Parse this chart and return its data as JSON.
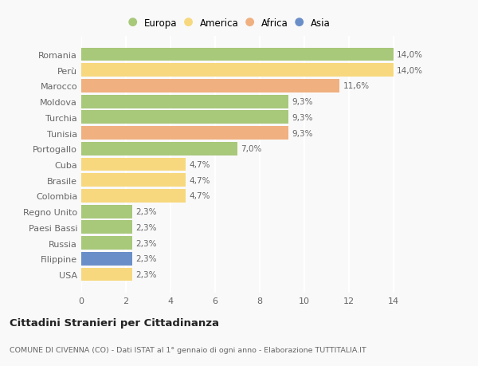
{
  "countries": [
    "Romania",
    "Perù",
    "Marocco",
    "Moldova",
    "Turchia",
    "Tunisia",
    "Portogallo",
    "Cuba",
    "Brasile",
    "Colombia",
    "Regno Unito",
    "Paesi Bassi",
    "Russia",
    "Filippine",
    "USA"
  ],
  "values": [
    14.0,
    14.0,
    11.6,
    9.3,
    9.3,
    9.3,
    7.0,
    4.7,
    4.7,
    4.7,
    2.3,
    2.3,
    2.3,
    2.3,
    2.3
  ],
  "labels": [
    "14,0%",
    "14,0%",
    "11,6%",
    "9,3%",
    "9,3%",
    "9,3%",
    "7,0%",
    "4,7%",
    "4,7%",
    "4,7%",
    "2,3%",
    "2,3%",
    "2,3%",
    "2,3%",
    "2,3%"
  ],
  "continents": [
    "Europa",
    "America",
    "Africa",
    "Europa",
    "Europa",
    "Africa",
    "Europa",
    "America",
    "America",
    "America",
    "Europa",
    "Europa",
    "Europa",
    "Asia",
    "America"
  ],
  "colors": {
    "Europa": "#a8c87a",
    "America": "#f7d87e",
    "Africa": "#f0b080",
    "Asia": "#6a8fc8"
  },
  "title": "Cittadini Stranieri per Cittadinanza",
  "subtitle": "COMUNE DI CIVENNA (CO) - Dati ISTAT al 1° gennaio di ogni anno - Elaborazione TUTTITALIA.IT",
  "xlim": [
    0,
    14.8
  ],
  "xticks": [
    0,
    2,
    4,
    6,
    8,
    10,
    12,
    14
  ],
  "background_color": "#f9f9f9",
  "grid_color": "#ffffff"
}
